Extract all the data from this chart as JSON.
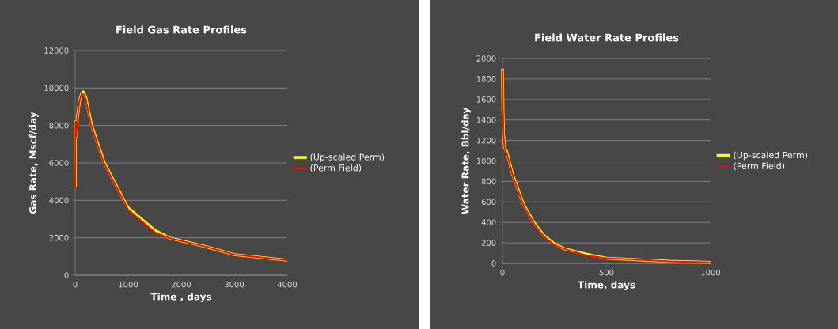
{
  "chart_data": [
    {
      "type": "line",
      "title": "Field Gas Rate Profiles",
      "xlabel": "Time , days",
      "ylabel": "Gas Rate, Mscf/day",
      "xlim": [
        0,
        4000
      ],
      "ylim": [
        0,
        12000
      ],
      "xticks": [
        0,
        1000,
        2000,
        3000,
        4000
      ],
      "yticks": [
        0,
        2000,
        4000,
        6000,
        8000,
        10000,
        12000
      ],
      "grid": "y",
      "legend": "right",
      "series": [
        {
          "name": "(Up-scaled Perm)",
          "color": "#ffff00",
          "x": [
            0,
            5,
            10,
            20,
            40,
            80,
            120,
            150,
            200,
            310,
            550,
            920,
            1000,
            1500,
            1770,
            2500,
            3000,
            4000
          ],
          "values": [
            4700,
            8200,
            7800,
            7400,
            8400,
            9300,
            9700,
            9800,
            9500,
            8000,
            6000,
            4000,
            3600,
            2400,
            2000,
            1500,
            1100,
            800
          ]
        },
        {
          "name": "(Perm Field)",
          "color": "#ff0000",
          "x": [
            0,
            5,
            10,
            20,
            40,
            80,
            120,
            150,
            200,
            300,
            540,
            910,
            1000,
            1500,
            1760,
            2500,
            3000,
            4000
          ],
          "values": [
            4700,
            8200,
            7800,
            7400,
            8400,
            9300,
            9700,
            9700,
            9400,
            8000,
            6000,
            4000,
            3500,
            2300,
            2000,
            1500,
            1100,
            800
          ]
        }
      ]
    },
    {
      "type": "line",
      "title": "Field Water Rate Profiles",
      "xlabel": "Time, days",
      "ylabel": "Water Rate,  Bbl/day",
      "xlim": [
        0,
        1000
      ],
      "ylim": [
        0,
        2000
      ],
      "xticks": [
        0,
        500,
        1000
      ],
      "yticks": [
        0,
        200,
        400,
        600,
        800,
        1000,
        1200,
        1400,
        1600,
        1800,
        2000
      ],
      "grid": "y",
      "legend": "right",
      "series": [
        {
          "name": "(Up-scaled Perm)",
          "color": "#ffff00",
          "x": [
            0,
            2,
            5,
            10,
            20,
            50,
            100,
            150,
            200,
            250,
            300,
            400,
            500,
            600,
            700,
            800,
            1000
          ],
          "values": [
            1900,
            1500,
            1260,
            1130,
            1090,
            860,
            580,
            400,
            270,
            190,
            140,
            90,
            50,
            40,
            30,
            20,
            10
          ]
        },
        {
          "name": "(Perm Field)",
          "color": "#ff0000",
          "x": [
            0,
            2,
            5,
            10,
            20,
            50,
            100,
            150,
            200,
            250,
            300,
            400,
            500,
            600,
            700,
            800,
            1000
          ],
          "values": [
            1890,
            1500,
            1250,
            1120,
            1080,
            850,
            570,
            390,
            260,
            180,
            140,
            80,
            50,
            40,
            30,
            20,
            10
          ]
        }
      ]
    }
  ]
}
